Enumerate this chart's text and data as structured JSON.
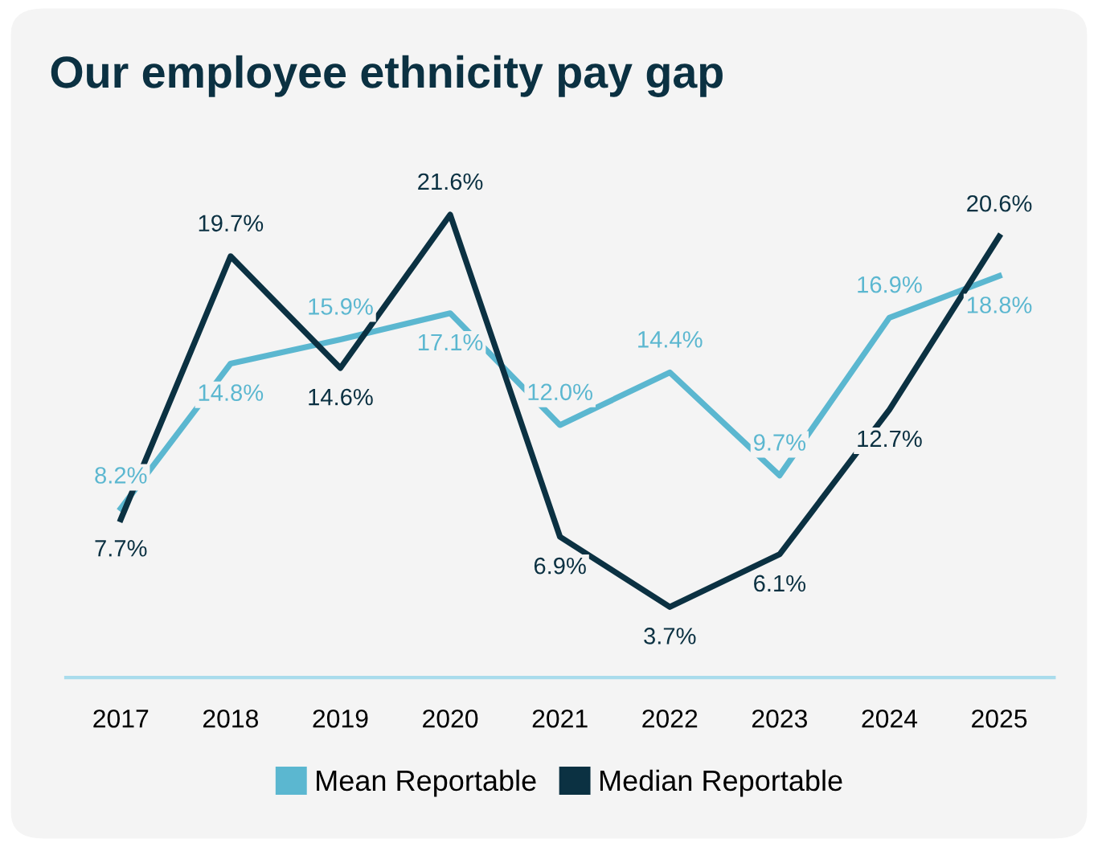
{
  "chart_data": {
    "type": "line",
    "title": "Our employee ethnicity pay gap",
    "categories": [
      "2017",
      "2018",
      "2019",
      "2020",
      "2021",
      "2022",
      "2023",
      "2024",
      "2025"
    ],
    "series": [
      {
        "name": "Mean Reportable",
        "color": "#5bb7d0",
        "values": [
          8.2,
          14.8,
          15.9,
          17.1,
          12.0,
          14.4,
          9.7,
          16.9,
          18.8
        ],
        "value_labels": [
          "8.2%",
          "14.8%",
          "15.9%",
          "17.1%",
          "12.0%",
          "14.4%",
          "9.7%",
          "16.9%",
          "18.8%"
        ]
      },
      {
        "name": "Median Reportable",
        "color": "#0b3142",
        "values": [
          7.7,
          19.7,
          14.6,
          21.6,
          6.9,
          3.7,
          6.1,
          12.7,
          20.6
        ],
        "value_labels": [
          "7.7%",
          "19.7%",
          "14.6%",
          "21.6%",
          "6.9%",
          "3.7%",
          "6.1%",
          "12.7%",
          "20.6%"
        ]
      }
    ],
    "legend": "bottom",
    "grid": false,
    "marker": "none",
    "line_style": "solid",
    "tick_labels": "x"
  }
}
